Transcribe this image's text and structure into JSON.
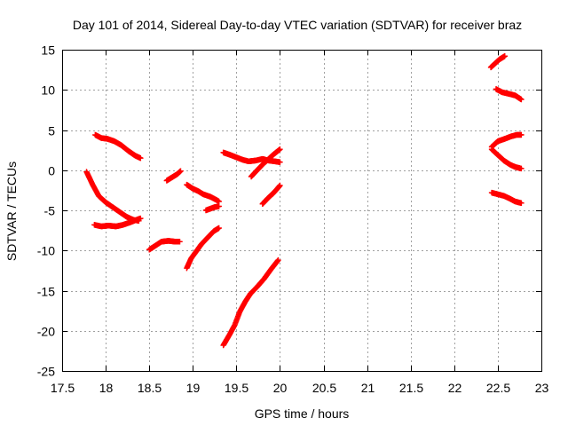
{
  "chart_data": {
    "type": "scatter",
    "title": "Day 101 of 2014, Sidereal Day-to-day VTEC variation (SDTVAR) for receiver braz",
    "xlabel": "GPS time / hours",
    "ylabel": "SDTVAR / TECUs",
    "xlim": [
      17.5,
      23
    ],
    "ylim": [
      -25,
      15
    ],
    "xticks": [
      "17.5",
      "18",
      "18.5",
      "19",
      "19.5",
      "20",
      "20.5",
      "21",
      "21.5",
      "22",
      "22.5",
      "23"
    ],
    "yticks": [
      "15",
      "10",
      "5",
      "0",
      "-5",
      "-10",
      "-15",
      "-20",
      "-25"
    ],
    "grid": true,
    "marker": "plus",
    "color": "#ff0000",
    "arcs": [
      {
        "x": [
          17.78,
          17.85,
          17.92,
          18.0,
          18.08,
          18.16,
          18.24,
          18.32,
          18.38
        ],
        "y": [
          -0.2,
          -1.8,
          -3.2,
          -4.0,
          -4.6,
          -5.2,
          -5.8,
          -6.2,
          -6.3
        ]
      },
      {
        "x": [
          17.88,
          17.95,
          18.02,
          18.1,
          18.18,
          18.26,
          18.34,
          18.4
        ],
        "y": [
          4.4,
          4.0,
          3.9,
          3.6,
          3.1,
          2.4,
          1.8,
          1.5
        ]
      },
      {
        "x": [
          17.87,
          17.95,
          18.03,
          18.12,
          18.2,
          18.28,
          18.35,
          18.4
        ],
        "y": [
          -6.8,
          -7.0,
          -6.9,
          -7.0,
          -6.8,
          -6.5,
          -6.2,
          -6.0
        ]
      },
      {
        "x": [
          18.5,
          18.57,
          18.64,
          18.72,
          18.8,
          18.85
        ],
        "y": [
          -9.9,
          -9.4,
          -8.9,
          -8.8,
          -8.9,
          -8.9
        ]
      },
      {
        "x": [
          18.7,
          18.76,
          18.82,
          18.86
        ],
        "y": [
          -1.3,
          -0.9,
          -0.5,
          -0.1
        ]
      },
      {
        "x": [
          18.93,
          19.0,
          19.06,
          19.12,
          19.2,
          19.27,
          19.3
        ],
        "y": [
          -1.8,
          -2.3,
          -2.6,
          -3.0,
          -3.3,
          -3.7,
          -3.9
        ]
      },
      {
        "x": [
          18.93,
          18.98,
          19.04,
          19.1,
          19.17,
          19.24,
          19.3
        ],
        "y": [
          -12.2,
          -11.0,
          -10.1,
          -9.2,
          -8.4,
          -7.6,
          -7.2
        ]
      },
      {
        "x": [
          19.15,
          19.2,
          19.25,
          19.3
        ],
        "y": [
          -5.0,
          -4.8,
          -4.6,
          -4.5
        ]
      },
      {
        "x": [
          19.35,
          19.43,
          19.5,
          19.57,
          19.64,
          19.72,
          19.8,
          19.87,
          19.94,
          20.0
        ],
        "y": [
          2.2,
          1.9,
          1.6,
          1.3,
          1.1,
          1.2,
          1.4,
          1.2,
          1.1,
          1.0
        ]
      },
      {
        "x": [
          19.67,
          19.73,
          19.8,
          19.87,
          19.93,
          20.0
        ],
        "y": [
          -0.8,
          -0.1,
          0.7,
          1.4,
          2.0,
          2.6
        ]
      },
      {
        "x": [
          19.8,
          19.86,
          19.92,
          19.97,
          20.0
        ],
        "y": [
          -4.2,
          -3.5,
          -2.9,
          -2.3,
          -1.9
        ]
      },
      {
        "x": [
          19.35,
          19.42,
          19.48,
          19.54,
          19.6,
          19.66,
          19.74,
          19.82,
          19.9,
          19.98
        ],
        "y": [
          -21.8,
          -20.5,
          -19.3,
          -17.6,
          -16.4,
          -15.4,
          -14.5,
          -13.5,
          -12.3,
          -11.2
        ]
      },
      {
        "x": [
          22.42,
          22.47,
          22.52,
          22.58
        ],
        "y": [
          12.8,
          13.3,
          13.8,
          14.2
        ]
      },
      {
        "x": [
          22.48,
          22.55,
          22.63,
          22.7,
          22.77
        ],
        "y": [
          10.1,
          9.7,
          9.5,
          9.3,
          8.8
        ]
      },
      {
        "x": [
          22.43,
          22.5,
          22.58,
          22.65,
          22.72,
          22.77
        ],
        "y": [
          2.9,
          3.6,
          3.9,
          4.2,
          4.4,
          4.4
        ]
      },
      {
        "x": [
          22.43,
          22.5,
          22.57,
          22.64,
          22.7,
          22.77
        ],
        "y": [
          2.6,
          1.9,
          1.2,
          0.7,
          0.4,
          0.2
        ]
      },
      {
        "x": [
          22.43,
          22.5,
          22.57,
          22.63,
          22.7,
          22.77
        ],
        "y": [
          -2.8,
          -3.0,
          -3.2,
          -3.5,
          -3.9,
          -4.1
        ]
      }
    ]
  }
}
